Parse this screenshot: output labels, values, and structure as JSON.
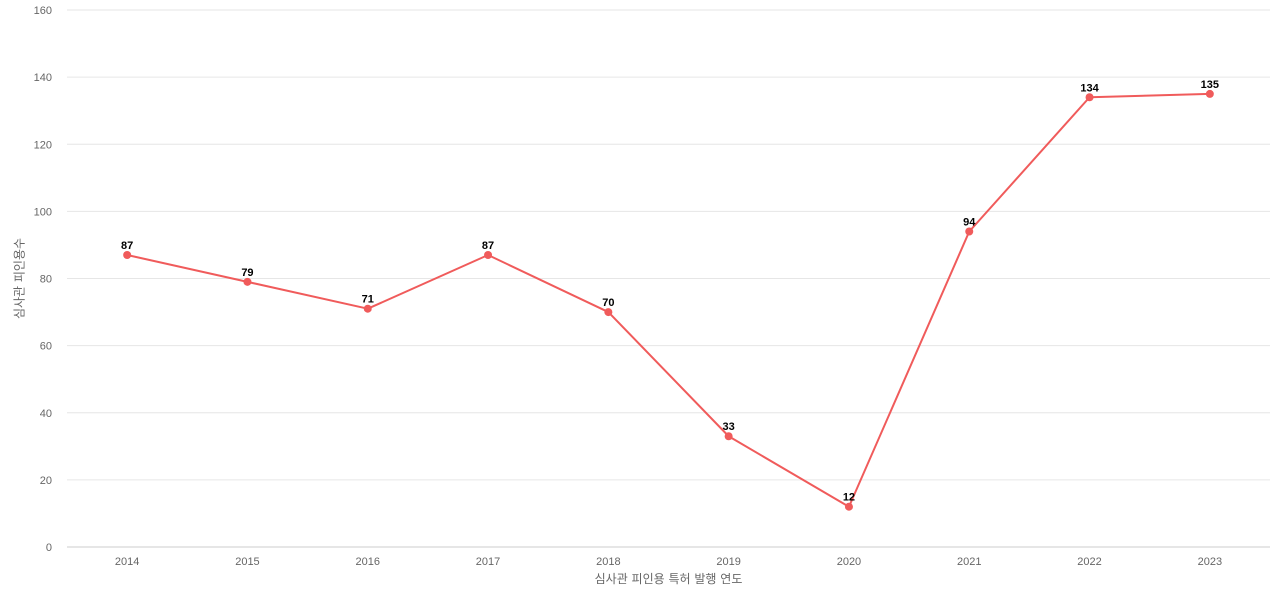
{
  "chart_data": {
    "type": "line",
    "x": [
      "2014",
      "2015",
      "2016",
      "2017",
      "2018",
      "2019",
      "2020",
      "2021",
      "2022",
      "2023"
    ],
    "series": [
      {
        "values": [
          87,
          79,
          71,
          87,
          70,
          33,
          12,
          94,
          134,
          135
        ],
        "color": "#f05b5b"
      }
    ],
    "xlabel": "심사관 피인용 특허 발행 연도",
    "ylabel": "심사관 피인용수",
    "ylim": [
      0,
      160
    ],
    "yticks": [
      0,
      20,
      40,
      60,
      80,
      100,
      120,
      140,
      160
    ],
    "grid": true,
    "data_labels": true
  }
}
